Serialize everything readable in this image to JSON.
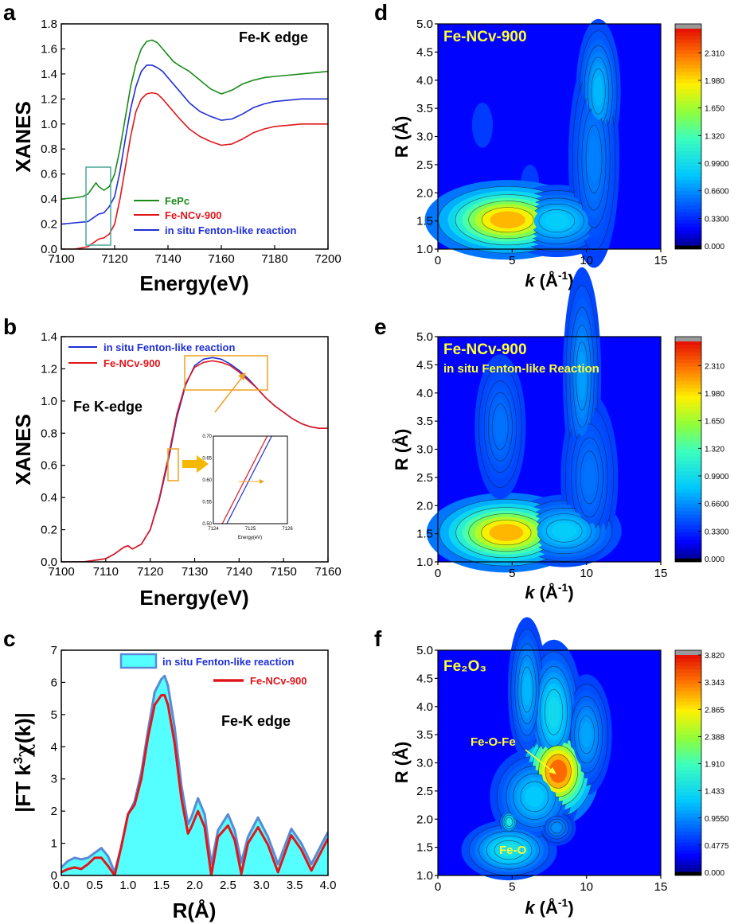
{
  "colors": {
    "green": "#1a8a1a",
    "red": "#e0161b",
    "blue": "#1f2fd6",
    "box": "#4aa898",
    "orange": "#f0a020",
    "cyan": "#55ffff",
    "yellow": "#ffff33"
  },
  "panels": {
    "a": "a",
    "b": "b",
    "c": "c",
    "d": "d",
    "e": "e",
    "f": "f"
  },
  "chart_data": [
    {
      "id": "a",
      "type": "line",
      "annotation": "Fe-K edge",
      "xlabel": "Energy(eV)",
      "ylabel": "XANES",
      "xlim": [
        7100,
        7200
      ],
      "ylim": [
        0.0,
        1.8
      ],
      "xticks": [
        7100,
        7120,
        7140,
        7160,
        7180,
        7200
      ],
      "yticks": [
        0.0,
        0.2,
        0.4,
        0.6,
        0.8,
        1.0,
        1.2,
        1.4,
        1.6,
        1.8
      ],
      "series": [
        {
          "name": "FePc",
          "color": "#1a8a1a",
          "x": [
            7100,
            7105,
            7108,
            7110,
            7112,
            7113,
            7114,
            7116,
            7118,
            7120,
            7122,
            7124,
            7126,
            7128,
            7130,
            7132,
            7134,
            7136,
            7138,
            7140,
            7142,
            7144,
            7148,
            7152,
            7156,
            7160,
            7164,
            7168,
            7172,
            7176,
            7180,
            7185,
            7190,
            7195,
            7200
          ],
          "y": [
            0.4,
            0.41,
            0.42,
            0.44,
            0.5,
            0.53,
            0.5,
            0.47,
            0.5,
            0.6,
            0.8,
            1.05,
            1.3,
            1.48,
            1.6,
            1.66,
            1.67,
            1.65,
            1.6,
            1.55,
            1.5,
            1.47,
            1.42,
            1.35,
            1.28,
            1.24,
            1.27,
            1.32,
            1.35,
            1.37,
            1.38,
            1.39,
            1.4,
            1.41,
            1.42
          ]
        },
        {
          "name": "Fe-NCv-900",
          "color": "#e0161b",
          "x": [
            7100,
            7105,
            7110,
            7112,
            7114,
            7116,
            7118,
            7120,
            7122,
            7124,
            7126,
            7128,
            7130,
            7132,
            7134,
            7136,
            7138,
            7140,
            7144,
            7148,
            7152,
            7156,
            7160,
            7164,
            7168,
            7172,
            7176,
            7180,
            7185,
            7190,
            7195,
            7200
          ],
          "y": [
            0.0,
            0.0,
            0.02,
            0.05,
            0.08,
            0.09,
            0.12,
            0.2,
            0.4,
            0.65,
            0.9,
            1.1,
            1.2,
            1.24,
            1.25,
            1.24,
            1.2,
            1.15,
            1.05,
            0.96,
            0.9,
            0.86,
            0.83,
            0.84,
            0.88,
            0.93,
            0.96,
            0.98,
            0.99,
            1.0,
            1.0,
            1.0
          ]
        },
        {
          "name": "in situ Fenton-like reaction",
          "color": "#1f2fd6",
          "x": [
            7100,
            7105,
            7110,
            7112,
            7114,
            7116,
            7118,
            7120,
            7122,
            7124,
            7126,
            7128,
            7130,
            7132,
            7134,
            7136,
            7138,
            7140,
            7144,
            7148,
            7152,
            7156,
            7160,
            7164,
            7168,
            7172,
            7176,
            7180,
            7185,
            7190,
            7195,
            7200
          ],
          "y": [
            0.2,
            0.21,
            0.22,
            0.25,
            0.28,
            0.29,
            0.34,
            0.42,
            0.62,
            0.88,
            1.12,
            1.3,
            1.42,
            1.47,
            1.47,
            1.45,
            1.42,
            1.37,
            1.27,
            1.17,
            1.1,
            1.06,
            1.03,
            1.04,
            1.08,
            1.13,
            1.16,
            1.18,
            1.19,
            1.2,
            1.2,
            1.2
          ]
        }
      ]
    },
    {
      "id": "b",
      "type": "line",
      "annotation": "Fe K-edge",
      "xlabel": "Energy(eV)",
      "ylabel": "XANES",
      "xlim": [
        7100,
        7160
      ],
      "ylim": [
        0.0,
        1.4
      ],
      "xticks": [
        7100,
        7110,
        7120,
        7130,
        7140,
        7150,
        7160
      ],
      "yticks": [
        0.0,
        0.2,
        0.4,
        0.6,
        0.8,
        1.0,
        1.2,
        1.4
      ],
      "series": [
        {
          "name": "in situ Fenton-like reaction",
          "color": "#1f2fd6",
          "x": [
            7100,
            7105,
            7110,
            7112,
            7114,
            7115,
            7116,
            7118,
            7120,
            7122,
            7124,
            7126,
            7128,
            7130,
            7132,
            7134,
            7136,
            7138,
            7140,
            7142,
            7144,
            7146,
            7148,
            7150,
            7152,
            7154,
            7156,
            7158,
            7160
          ],
          "y": [
            0.0,
            0.0,
            0.02,
            0.05,
            0.09,
            0.1,
            0.08,
            0.11,
            0.2,
            0.38,
            0.62,
            0.9,
            1.1,
            1.22,
            1.26,
            1.27,
            1.26,
            1.23,
            1.19,
            1.14,
            1.08,
            1.02,
            0.97,
            0.93,
            0.89,
            0.86,
            0.84,
            0.83,
            0.83
          ]
        },
        {
          "name": "Fe-NCv-900",
          "color": "#e0161b",
          "x": [
            7100,
            7105,
            7110,
            7112,
            7114,
            7115,
            7116,
            7118,
            7120,
            7122,
            7124,
            7126,
            7128,
            7130,
            7132,
            7134,
            7136,
            7138,
            7140,
            7142,
            7144,
            7146,
            7148,
            7150,
            7152,
            7154,
            7156,
            7158,
            7160
          ],
          "y": [
            0.0,
            0.0,
            0.02,
            0.05,
            0.09,
            0.1,
            0.08,
            0.11,
            0.2,
            0.39,
            0.64,
            0.92,
            1.11,
            1.21,
            1.24,
            1.25,
            1.24,
            1.22,
            1.18,
            1.13,
            1.08,
            1.02,
            0.97,
            0.93,
            0.89,
            0.86,
            0.84,
            0.83,
            0.83
          ]
        }
      ],
      "inset": {
        "xlim": [
          7124,
          7126
        ],
        "ylim": [
          0.5,
          0.7
        ],
        "xticks": [
          7124,
          7125,
          7126
        ],
        "yticks": [
          0.5,
          0.55,
          0.6,
          0.65,
          0.7
        ],
        "xlabel": "Energy(eV)",
        "series": [
          {
            "name": "in situ Fenton-like reaction",
            "color": "#1f2fd6",
            "x": [
              7124.0,
              7126.0
            ],
            "y": [
              0.44,
              0.77
            ]
          },
          {
            "name": "Fe-NCv-900",
            "color": "#e0161b",
            "x": [
              7124.0,
              7126.0
            ],
            "y": [
              0.46,
              0.79
            ]
          }
        ]
      }
    },
    {
      "id": "c",
      "type": "area",
      "annotation": "Fe-K edge",
      "xlabel": "R(Å)",
      "ylabel": "|FT k³χ(k)|",
      "xlim": [
        0.0,
        4.0
      ],
      "ylim": [
        0,
        7
      ],
      "xticks": [
        0.0,
        0.5,
        1.0,
        1.5,
        2.0,
        2.5,
        3.0,
        3.5,
        4.0
      ],
      "yticks": [
        0,
        1,
        2,
        3,
        4,
        5,
        6,
        7
      ],
      "series": [
        {
          "name": "in situ Fenton-like reaction",
          "color": "#55ffff",
          "x": [
            0.0,
            0.1,
            0.2,
            0.3,
            0.4,
            0.5,
            0.6,
            0.7,
            0.8,
            0.9,
            1.0,
            1.1,
            1.2,
            1.3,
            1.4,
            1.5,
            1.55,
            1.6,
            1.7,
            1.8,
            1.9,
            1.95,
            2.05,
            2.15,
            2.25,
            2.35,
            2.5,
            2.6,
            2.7,
            2.8,
            2.95,
            3.1,
            3.25,
            3.45,
            3.6,
            3.75,
            3.9,
            4.0
          ],
          "y": [
            0.25,
            0.45,
            0.55,
            0.5,
            0.55,
            0.7,
            0.85,
            0.6,
            0.1,
            0.9,
            1.9,
            2.3,
            3.2,
            4.5,
            5.7,
            6.1,
            6.2,
            5.9,
            4.6,
            2.8,
            1.6,
            1.8,
            2.4,
            1.9,
            0.35,
            1.4,
            1.9,
            1.4,
            0.4,
            1.2,
            1.8,
            1.2,
            0.35,
            1.45,
            1.0,
            0.35,
            0.95,
            1.35
          ]
        },
        {
          "name": "Fe-NCv-900",
          "color": "#e0161b",
          "x": [
            0.0,
            0.1,
            0.2,
            0.3,
            0.4,
            0.5,
            0.6,
            0.7,
            0.8,
            0.9,
            1.0,
            1.1,
            1.2,
            1.3,
            1.4,
            1.5,
            1.55,
            1.6,
            1.7,
            1.8,
            1.9,
            1.95,
            2.05,
            2.15,
            2.25,
            2.35,
            2.5,
            2.6,
            2.7,
            2.8,
            2.95,
            3.1,
            3.25,
            3.45,
            3.6,
            3.75,
            3.9,
            4.0
          ],
          "y": [
            0.1,
            0.2,
            0.25,
            0.2,
            0.35,
            0.55,
            0.55,
            0.3,
            0.0,
            0.9,
            1.9,
            2.2,
            3.0,
            4.3,
            5.3,
            5.6,
            5.6,
            5.3,
            4.1,
            2.4,
            1.3,
            1.5,
            2.0,
            1.5,
            0.0,
            1.2,
            1.55,
            1.1,
            0.05,
            1.0,
            1.5,
            0.95,
            0.1,
            1.25,
            0.8,
            0.15,
            0.75,
            1.15
          ]
        }
      ]
    },
    {
      "id": "d",
      "type": "heatmap",
      "title": "Fe-NCv-900",
      "subtitle": "",
      "xlabel": "k (Å⁻¹)",
      "ylabel": "R (Å)",
      "xlim": [
        0,
        15
      ],
      "ylim": [
        1.0,
        5.0
      ],
      "xticks": [
        0,
        5,
        10,
        15
      ],
      "yticks": [
        1.0,
        1.5,
        2.0,
        2.5,
        3.0,
        3.5,
        4.0,
        4.5,
        5.0
      ],
      "colorbar": [
        "2.310",
        "1.980",
        "1.650",
        "1.320",
        "0.9900",
        "0.6600",
        "0.3300",
        "0.000"
      ],
      "cbmax": 2.6,
      "cbtop": 2.31,
      "background": 0.4,
      "peaks": [
        {
          "k": 4.7,
          "R": 1.52,
          "amp": 1.9,
          "sk": 2.6,
          "sR": 0.33
        },
        {
          "k": 8.0,
          "R": 1.5,
          "amp": 0.55,
          "sk": 1.8,
          "sR": 0.3
        },
        {
          "k": 10.8,
          "R": 3.8,
          "amp": 0.45,
          "sk": 0.7,
          "sR": 0.6
        },
        {
          "k": 10.5,
          "R": 2.6,
          "amp": 0.25,
          "sk": 0.8,
          "sR": 0.9
        },
        {
          "k": 6.2,
          "R": 2.2,
          "amp": -0.15,
          "sk": 0.6,
          "sR": 0.3
        },
        {
          "k": 3.0,
          "R": 3.2,
          "amp": -0.1,
          "sk": 0.7,
          "sR": 0.4
        }
      ],
      "annotations": []
    },
    {
      "id": "e",
      "type": "heatmap",
      "title": "Fe-NCv-900",
      "subtitle": "in situ Fenton-like Reaction",
      "xlabel": "k (Å⁻¹)",
      "ylabel": "R (Å)",
      "xlim": [
        0,
        15
      ],
      "ylim": [
        1.0,
        5.0
      ],
      "xticks": [
        0,
        5,
        10,
        15
      ],
      "yticks": [
        1.0,
        1.5,
        2.0,
        2.5,
        3.0,
        3.5,
        4.0,
        4.5,
        5.0
      ],
      "colorbar": [
        "2.310",
        "1.980",
        "1.650",
        "1.320",
        "0.9900",
        "0.6600",
        "0.3300",
        "0.000"
      ],
      "cbmax": 2.6,
      "cbtop": 2.31,
      "background": 0.4,
      "peaks": [
        {
          "k": 4.6,
          "R": 1.52,
          "amp": 1.9,
          "sk": 2.5,
          "sR": 0.33
        },
        {
          "k": 8.5,
          "R": 1.55,
          "amp": 0.55,
          "sk": 1.8,
          "sR": 0.3
        },
        {
          "k": 9.7,
          "R": 4.3,
          "amp": 0.35,
          "sk": 0.6,
          "sR": 0.9
        },
        {
          "k": 4.2,
          "R": 3.4,
          "amp": 0.2,
          "sk": 0.8,
          "sR": 0.6
        },
        {
          "k": 10.2,
          "R": 2.5,
          "amp": 0.2,
          "sk": 0.9,
          "sR": 0.7
        }
      ],
      "annotations": []
    },
    {
      "id": "f",
      "type": "heatmap",
      "title": "Fe₂O₃",
      "subtitle": "",
      "xlabel": "k (Å⁻¹)",
      "ylabel": "R (Å)",
      "xlim": [
        0,
        15
      ],
      "ylim": [
        1.0,
        5.0
      ],
      "xticks": [
        0,
        5,
        10,
        15
      ],
      "yticks": [
        1.0,
        1.5,
        2.0,
        2.5,
        3.0,
        3.5,
        4.0,
        4.5,
        5.0
      ],
      "colorbar": [
        "3.820",
        "3.343",
        "2.865",
        "2.388",
        "1.910",
        "1.433",
        "0.9550",
        "0.4775",
        "0.000"
      ],
      "cbmax": 3.82,
      "cbtop": 3.82,
      "background": 0.55,
      "peaks": [
        {
          "k": 8.1,
          "R": 2.85,
          "amp": 3.2,
          "sk": 1.3,
          "sR": 0.45
        },
        {
          "k": 7.8,
          "R": 3.9,
          "amp": 1.0,
          "sk": 0.9,
          "sR": 0.6
        },
        {
          "k": 4.8,
          "R": 1.45,
          "amp": 1.1,
          "sk": 1.5,
          "sR": 0.25
        },
        {
          "k": 4.8,
          "R": 1.95,
          "amp": 1.2,
          "sk": 0.35,
          "sR": 0.12
        },
        {
          "k": 6.0,
          "R": 4.3,
          "amp": 0.7,
          "sk": 0.6,
          "sR": 0.6
        },
        {
          "k": 10.0,
          "R": 3.5,
          "amp": 0.6,
          "sk": 0.8,
          "sR": 0.5
        },
        {
          "k": 6.5,
          "R": 2.4,
          "amp": 0.8,
          "sk": 1.4,
          "sR": 0.4
        },
        {
          "k": 8.0,
          "R": 1.85,
          "amp": 0.5,
          "sk": 0.6,
          "sR": 0.15
        }
      ],
      "annotations": [
        "Fe-O-Fe",
        "Fe-O"
      ]
    }
  ]
}
